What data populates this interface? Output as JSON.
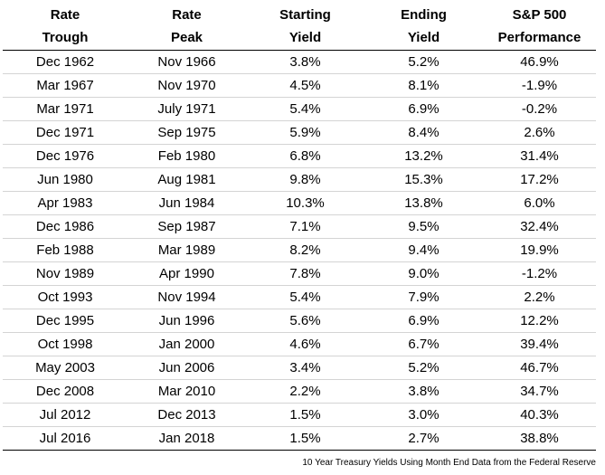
{
  "headers": [
    [
      "Rate",
      "Trough"
    ],
    [
      "Rate",
      "Peak"
    ],
    [
      "Starting",
      "Yield"
    ],
    [
      "Ending",
      "Yield"
    ],
    [
      "S&P 500",
      "Performance"
    ]
  ],
  "rows": [
    [
      "Dec 1962",
      "Nov 1966",
      "3.8%",
      "5.2%",
      "46.9%"
    ],
    [
      "Mar 1967",
      "Nov 1970",
      "4.5%",
      "8.1%",
      "-1.9%"
    ],
    [
      "Mar 1971",
      "July 1971",
      "5.4%",
      "6.9%",
      "-0.2%"
    ],
    [
      "Dec 1971",
      "Sep 1975",
      "5.9%",
      "8.4%",
      "2.6%"
    ],
    [
      "Dec 1976",
      "Feb 1980",
      "6.8%",
      "13.2%",
      "31.4%"
    ],
    [
      "Jun 1980",
      "Aug 1981",
      "9.8%",
      "15.3%",
      "17.2%"
    ],
    [
      "Apr 1983",
      "Jun 1984",
      "10.3%",
      "13.8%",
      "6.0%"
    ],
    [
      "Dec 1986",
      "Sep 1987",
      "7.1%",
      "9.5%",
      "32.4%"
    ],
    [
      "Feb 1988",
      "Mar 1989",
      "8.2%",
      "9.4%",
      "19.9%"
    ],
    [
      "Nov 1989",
      "Apr 1990",
      "7.8%",
      "9.0%",
      "-1.2%"
    ],
    [
      "Oct 1993",
      "Nov 1994",
      "5.4%",
      "7.9%",
      "2.2%"
    ],
    [
      "Dec 1995",
      "Jun 1996",
      "5.6%",
      "6.9%",
      "12.2%"
    ],
    [
      "Oct 1998",
      "Jan 2000",
      "4.6%",
      "6.7%",
      "39.4%"
    ],
    [
      "May 2003",
      "Jun 2006",
      "3.4%",
      "5.2%",
      "46.7%"
    ],
    [
      "Dec 2008",
      "Mar 2010",
      "2.2%",
      "3.8%",
      "34.7%"
    ],
    [
      "Jul 2012",
      "Dec 2013",
      "1.5%",
      "3.0%",
      "40.3%"
    ],
    [
      "Jul 2016",
      "Jan 2018",
      "1.5%",
      "2.7%",
      "38.8%"
    ]
  ],
  "footnote": "10 Year Treasury Yields Using Month End Data from the Federal Reserve"
}
